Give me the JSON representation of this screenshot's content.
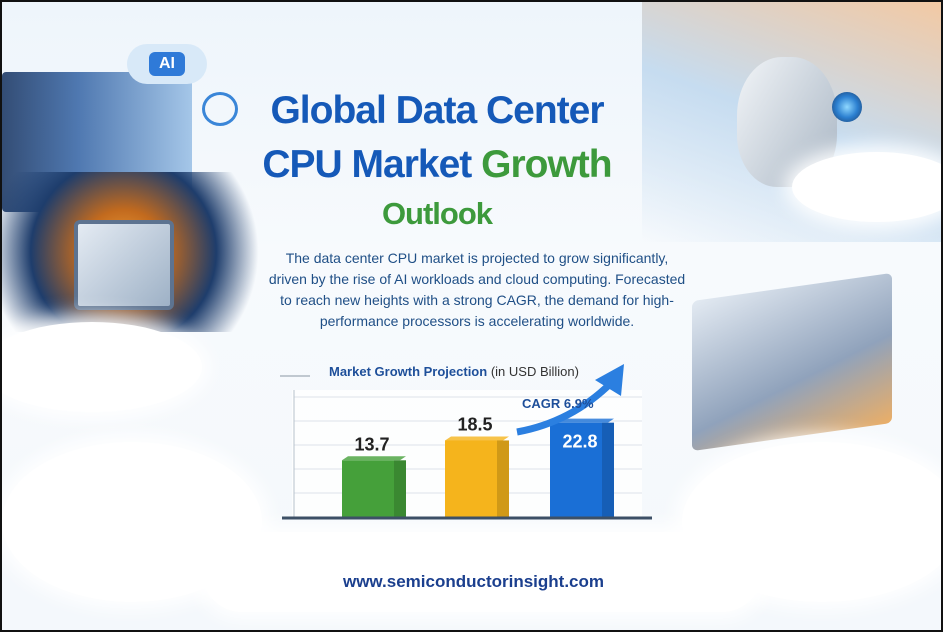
{
  "title": {
    "line1": "Global Data Center",
    "line2_a": "CPU Market",
    "line2_b": "Growth",
    "line3": "Outlook"
  },
  "badge": "AI",
  "description": "The data center CPU market is projected to grow significantly, driven by the rise of AI workloads and cloud computing. Forecasted to reach new heights with a strong CAGR, the demand for high-performance processors is accelerating worldwide.",
  "chart_data": {
    "type": "bar",
    "title": "Market Growth Projection",
    "unit": "(in USD Billion)",
    "values": [
      13.7,
      18.5,
      22.8
    ],
    "labels": [
      "13.7",
      "18.5",
      "22.8"
    ],
    "colors": [
      "#45a03a",
      "#f5b41c",
      "#1a6fd6"
    ],
    "annotation": "CAGR 6.9%",
    "ylim": [
      0,
      29
    ],
    "grid": true
  },
  "footer_url": "www.semiconductorinsight.com"
}
